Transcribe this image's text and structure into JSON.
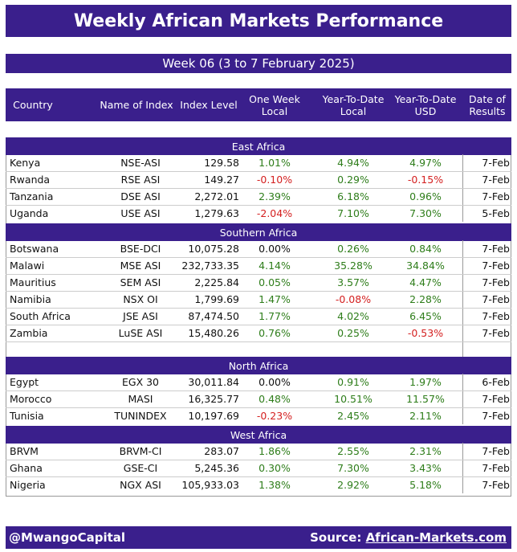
{
  "title": "Weekly African Markets Performance",
  "week": "Week 06 (3 to 7 February 2025)",
  "columns": {
    "country": "Country",
    "index_name": "Name of Index",
    "index_level": "Index Level",
    "one_week_line1": "One Week",
    "one_week_line2": "Local",
    "ytd_local_line1": "Year-To-Date",
    "ytd_local_line2": "Local",
    "ytd_usd_line1": "Year-To-Date",
    "ytd_usd_line2": "USD",
    "date_line1": "Date of",
    "date_line2": "Results"
  },
  "regions": [
    {
      "name": "East Africa",
      "rows": [
        {
          "country": "Kenya",
          "index": "NSE-ASI",
          "level": "129.58",
          "week": "1.01%",
          "ytd": "4.94%",
          "usd": "4.97%",
          "date": "7-Feb"
        },
        {
          "country": "Rwanda",
          "index": "RSE ASI",
          "level": "149.27",
          "week": "-0.10%",
          "ytd": "0.29%",
          "usd": "-0.15%",
          "date": "7-Feb"
        },
        {
          "country": "Tanzania",
          "index": "DSE ASI",
          "level": "2,272.01",
          "week": "2.39%",
          "ytd": "6.18%",
          "usd": "0.96%",
          "date": "7-Feb"
        },
        {
          "country": "Uganda",
          "index": "USE ASI",
          "level": "1,279.63",
          "week": "-2.04%",
          "ytd": "7.10%",
          "usd": "7.30%",
          "date": "5-Feb"
        }
      ]
    },
    {
      "name": "Southern Africa",
      "rows": [
        {
          "country": "Botswana",
          "index": "BSE-DCI",
          "level": "10,075.28",
          "week": "0.00%",
          "ytd": "0.26%",
          "usd": "0.84%",
          "date": "7-Feb"
        },
        {
          "country": "Malawi",
          "index": "MSE ASI",
          "level": "232,733.35",
          "week": "4.14%",
          "ytd": "35.28%",
          "usd": "34.84%",
          "date": "7-Feb"
        },
        {
          "country": "Mauritius",
          "index": "SEM ASI",
          "level": "2,225.84",
          "week": "0.05%",
          "ytd": "3.57%",
          "usd": "4.47%",
          "date": "7-Feb"
        },
        {
          "country": "Namibia",
          "index": "NSX OI",
          "level": "1,799.69",
          "week": "1.47%",
          "ytd": "-0.08%",
          "usd": "2.28%",
          "date": "7-Feb"
        },
        {
          "country": "South Africa",
          "index": "JSE ASI",
          "level": "87,474.50",
          "week": "1.77%",
          "ytd": "4.02%",
          "usd": "6.45%",
          "date": "7-Feb"
        },
        {
          "country": "Zambia",
          "index": "LuSE ASI",
          "level": "15,480.26",
          "week": "0.76%",
          "ytd": "0.25%",
          "usd": "-0.53%",
          "date": "7-Feb"
        }
      ]
    },
    {
      "name": "North Africa",
      "rows": [
        {
          "country": "Egypt",
          "index": "EGX 30",
          "level": "30,011.84",
          "week": "0.00%",
          "ytd": "0.91%",
          "usd": "1.97%",
          "date": "6-Feb"
        },
        {
          "country": "Morocco",
          "index": "MASI",
          "level": "16,325.77",
          "week": "0.48%",
          "ytd": "10.51%",
          "usd": "11.57%",
          "date": "7-Feb"
        },
        {
          "country": "Tunisia",
          "index": "TUNINDEX",
          "level": "10,197.69",
          "week": "-0.23%",
          "ytd": "2.45%",
          "usd": "2.11%",
          "date": "7-Feb"
        }
      ]
    },
    {
      "name": "West Africa",
      "rows": [
        {
          "country": "BRVM",
          "index": "BRVM-CI",
          "level": "283.07",
          "week": "1.86%",
          "ytd": "2.55%",
          "usd": "2.31%",
          "date": "7-Feb"
        },
        {
          "country": "Ghana",
          "index": "GSE-CI",
          "level": "5,245.36",
          "week": "0.30%",
          "ytd": "7.30%",
          "usd": "3.43%",
          "date": "7-Feb"
        },
        {
          "country": "Nigeria",
          "index": "NGX ASI",
          "level": "105,933.03",
          "week": "1.38%",
          "ytd": "2.92%",
          "usd": "5.18%",
          "date": "7-Feb"
        }
      ]
    }
  ],
  "footer": {
    "handle": "@MwangoCapital",
    "source_label": "Source: ",
    "source_link": "African-Markets.com"
  },
  "colors": {
    "header_bg": "#3a1f8c",
    "positive": "#2e7d1a",
    "negative": "#d42020"
  }
}
